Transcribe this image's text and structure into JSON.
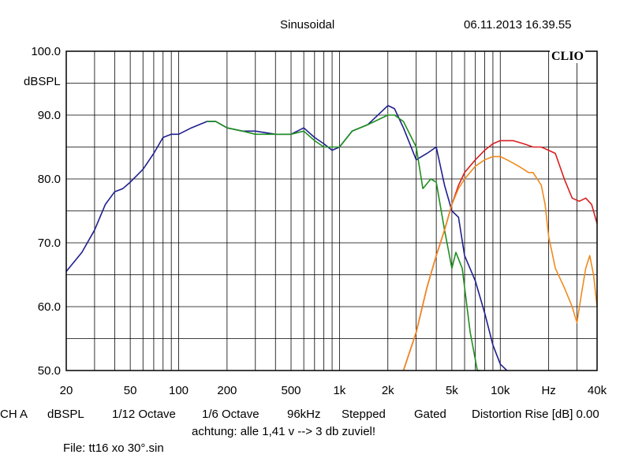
{
  "header": {
    "title": "Sinusoidal",
    "timestamp": "06.11.2013 16.39.55"
  },
  "brand": "CLIO",
  "info": {
    "channel": "CH A",
    "unit": "dBSPL",
    "smoothing_1": "1/12 Octave",
    "smoothing_2": "1/6 Octave",
    "sample_rate": "96kHz",
    "mode": "Stepped",
    "window": "Gated",
    "distortion": "Distortion Rise [dB] 0.00"
  },
  "note": "achtung: alle 1,41 v --> 3 db zuviel!",
  "file": "File: tt16 xo 30°.sin",
  "colors": {
    "navy": "#1f1f8f",
    "green": "#1f8f1f",
    "red": "#d81f1f",
    "orange": "#f08a1f",
    "grid": "#000000"
  },
  "chart_data": {
    "type": "line",
    "xscale": "log",
    "xlim": [
      20,
      40000
    ],
    "ylim": [
      50,
      100
    ],
    "ylabel": "dBSPL",
    "xlabel": "Hz",
    "grid": true,
    "y_ticks": [
      {
        "v": 100,
        "label": "100.0"
      },
      {
        "v": 90,
        "label": "90.0"
      },
      {
        "v": 80,
        "label": "80.0"
      },
      {
        "v": 70,
        "label": "70.0"
      },
      {
        "v": 60,
        "label": "60.0"
      },
      {
        "v": 50,
        "label": "50.0"
      }
    ],
    "x_ticks": [
      {
        "v": 20,
        "label": "20"
      },
      {
        "v": 50,
        "label": "50"
      },
      {
        "v": 100,
        "label": "100"
      },
      {
        "v": 200,
        "label": "200"
      },
      {
        "v": 500,
        "label": "500"
      },
      {
        "v": 1000,
        "label": "1k"
      },
      {
        "v": 2000,
        "label": "2k"
      },
      {
        "v": 5000,
        "label": "5k"
      },
      {
        "v": 10000,
        "label": "10k"
      },
      {
        "v": 20000,
        "label": "Hz"
      },
      {
        "v": 40000,
        "label": "40k"
      }
    ],
    "series": [
      {
        "color": "#1f1f8f",
        "points": [
          [
            20,
            65.5
          ],
          [
            25,
            68.5
          ],
          [
            30,
            72
          ],
          [
            35,
            76
          ],
          [
            40,
            78
          ],
          [
            45,
            78.5
          ],
          [
            50,
            79.5
          ],
          [
            60,
            81.5
          ],
          [
            70,
            84
          ],
          [
            80,
            86.5
          ],
          [
            90,
            87
          ],
          [
            100,
            87
          ],
          [
            120,
            88
          ],
          [
            150,
            89
          ],
          [
            170,
            89
          ],
          [
            200,
            88
          ],
          [
            250,
            87.5
          ],
          [
            300,
            87.5
          ],
          [
            400,
            87
          ],
          [
            500,
            87
          ],
          [
            600,
            88
          ],
          [
            700,
            86.5
          ],
          [
            800,
            85.5
          ],
          [
            900,
            84.5
          ],
          [
            1000,
            85
          ],
          [
            1200,
            87.5
          ],
          [
            1500,
            88.5
          ],
          [
            2000,
            91.5
          ],
          [
            2200,
            91
          ],
          [
            2500,
            88
          ],
          [
            3000,
            83
          ],
          [
            3500,
            84
          ],
          [
            4000,
            85
          ],
          [
            4500,
            79
          ],
          [
            5000,
            75
          ],
          [
            5500,
            74
          ],
          [
            6000,
            68
          ],
          [
            7000,
            64
          ],
          [
            8000,
            59
          ],
          [
            9000,
            54
          ],
          [
            10000,
            51
          ],
          [
            11000,
            49
          ]
        ]
      },
      {
        "color": "#1f8f1f",
        "points": [
          [
            150,
            89
          ],
          [
            170,
            89
          ],
          [
            200,
            88
          ],
          [
            250,
            87.5
          ],
          [
            300,
            87
          ],
          [
            400,
            87
          ],
          [
            500,
            87
          ],
          [
            600,
            87.5
          ],
          [
            700,
            86
          ],
          [
            800,
            85
          ],
          [
            900,
            85
          ],
          [
            1000,
            85
          ],
          [
            1200,
            87.5
          ],
          [
            1500,
            88.5
          ],
          [
            2000,
            90
          ],
          [
            2200,
            90
          ],
          [
            2500,
            89
          ],
          [
            3000,
            85
          ],
          [
            3300,
            78.5
          ],
          [
            3700,
            80
          ],
          [
            4000,
            79.5
          ],
          [
            4500,
            72
          ],
          [
            5000,
            66
          ],
          [
            5300,
            68.5
          ],
          [
            5800,
            66
          ],
          [
            6500,
            56
          ],
          [
            7200,
            50
          ],
          [
            7500,
            49
          ]
        ]
      },
      {
        "color": "#d81f1f",
        "points": [
          [
            2500,
            49
          ],
          [
            3000,
            56
          ],
          [
            3500,
            63
          ],
          [
            4000,
            68
          ],
          [
            4500,
            72
          ],
          [
            5000,
            76
          ],
          [
            5500,
            79
          ],
          [
            6000,
            81
          ],
          [
            7000,
            83
          ],
          [
            8000,
            84.5
          ],
          [
            9000,
            85.5
          ],
          [
            10000,
            86
          ],
          [
            12000,
            86
          ],
          [
            14000,
            85.5
          ],
          [
            16000,
            85
          ],
          [
            18000,
            85
          ],
          [
            20000,
            84.5
          ],
          [
            22000,
            84
          ],
          [
            25000,
            80
          ],
          [
            28000,
            77
          ],
          [
            31000,
            76.5
          ],
          [
            34000,
            77
          ],
          [
            37000,
            76
          ],
          [
            40000,
            73
          ]
        ]
      },
      {
        "color": "#f08a1f",
        "points": [
          [
            2500,
            49
          ],
          [
            3000,
            56
          ],
          [
            3500,
            63
          ],
          [
            4000,
            68
          ],
          [
            4500,
            72
          ],
          [
            5000,
            76
          ],
          [
            5500,
            78.5
          ],
          [
            6000,
            80
          ],
          [
            7000,
            82
          ],
          [
            8000,
            83
          ],
          [
            9000,
            83.5
          ],
          [
            10000,
            83.5
          ],
          [
            11000,
            83
          ],
          [
            12000,
            82.5
          ],
          [
            13000,
            82
          ],
          [
            14000,
            81.5
          ],
          [
            15000,
            81
          ],
          [
            16000,
            81
          ],
          [
            18000,
            79
          ],
          [
            19000,
            76
          ],
          [
            20000,
            71
          ],
          [
            22000,
            66
          ],
          [
            25000,
            63
          ],
          [
            28000,
            60
          ],
          [
            30000,
            57.5
          ],
          [
            32000,
            62
          ],
          [
            34000,
            66
          ],
          [
            36000,
            68
          ],
          [
            38000,
            65
          ],
          [
            40000,
            60
          ]
        ]
      }
    ]
  }
}
